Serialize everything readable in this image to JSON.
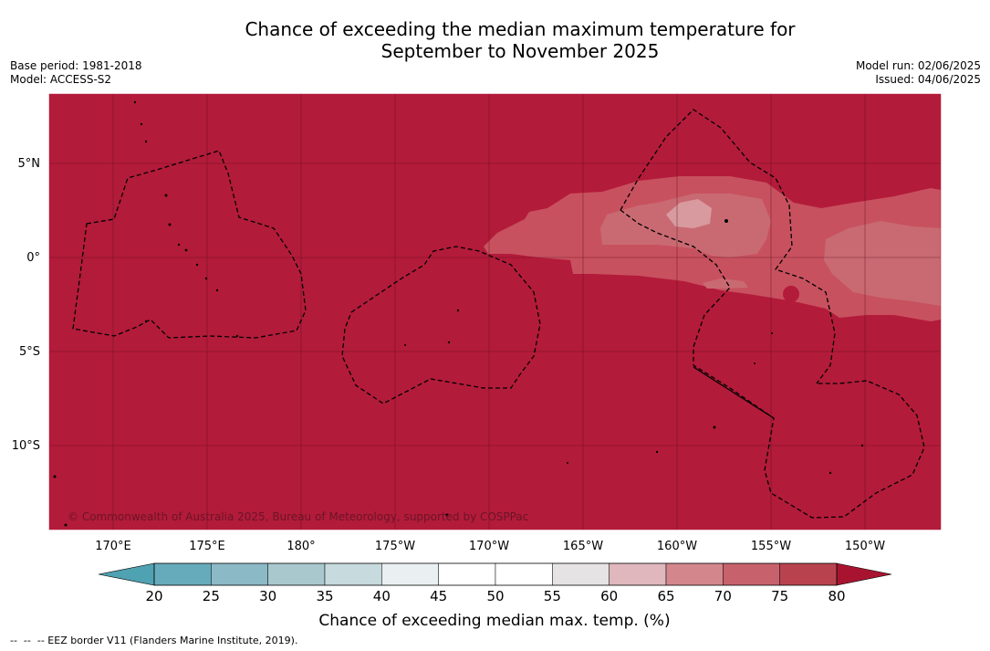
{
  "title_line1": "Chance of exceeding the median maximum temperature for",
  "title_line2": "September to November 2025",
  "base_period": "Base period: 1981-2018",
  "model": "Model: ACCESS-S2",
  "model_run": "Model run: 02/06/2025",
  "issued": "Issued: 04/06/2025",
  "copyright": "© Commonwealth of Australia 2025, Bureau of Meteorology, supported by COSPPac",
  "footer_note": "--  --  -- EEZ border V11 (Flanders Marine Institute, 2019).",
  "map": {
    "lon_labels": [
      "170°E",
      "175°E",
      "180°",
      "175°W",
      "170°W",
      "165°W",
      "160°W",
      "155°W",
      "150°W"
    ],
    "lat_labels": [
      "5°N",
      "0°",
      "5°S",
      "10°S"
    ],
    "colors": {
      "dominant": "#b31b3a",
      "band75": "#c8515f",
      "band70": "#c96a72",
      "band65": "#d89a9f"
    }
  },
  "legend": {
    "title": "Chance of exceeding median max. temp. (%)",
    "ticks": [
      "20",
      "25",
      "30",
      "35",
      "40",
      "45",
      "50",
      "55",
      "60",
      "65",
      "70",
      "75",
      "80"
    ],
    "colors": [
      "#66abbc",
      "#8bbac6",
      "#a9c8ce",
      "#c7dadd",
      "#eaf0f2",
      "#ffffff",
      "#ffffff",
      "#e6e3e4",
      "#dfb7bc",
      "#d3878d",
      "#c7626d",
      "#b8434f"
    ],
    "under_color": "#4fa2b2",
    "over_color": "#a8142f"
  }
}
